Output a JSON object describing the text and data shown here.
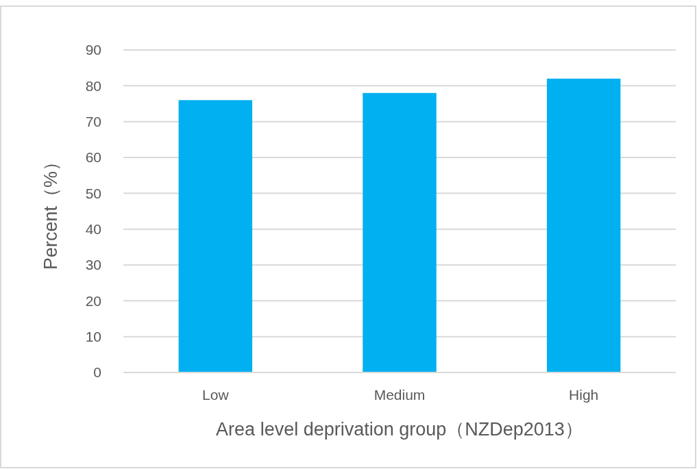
{
  "chart_data": {
    "type": "bar",
    "xlabel": "Area level deprivation group（NZDep2013）",
    "ylabel": "Percent（%）",
    "categories": [
      "Low",
      "Medium",
      "High"
    ],
    "values": [
      76,
      78,
      82
    ],
    "color": "#00b0f0",
    "ylim": [
      0,
      90
    ],
    "yticks": [
      0,
      10,
      20,
      30,
      40,
      50,
      60,
      70,
      80,
      90
    ],
    "grid": "y"
  }
}
